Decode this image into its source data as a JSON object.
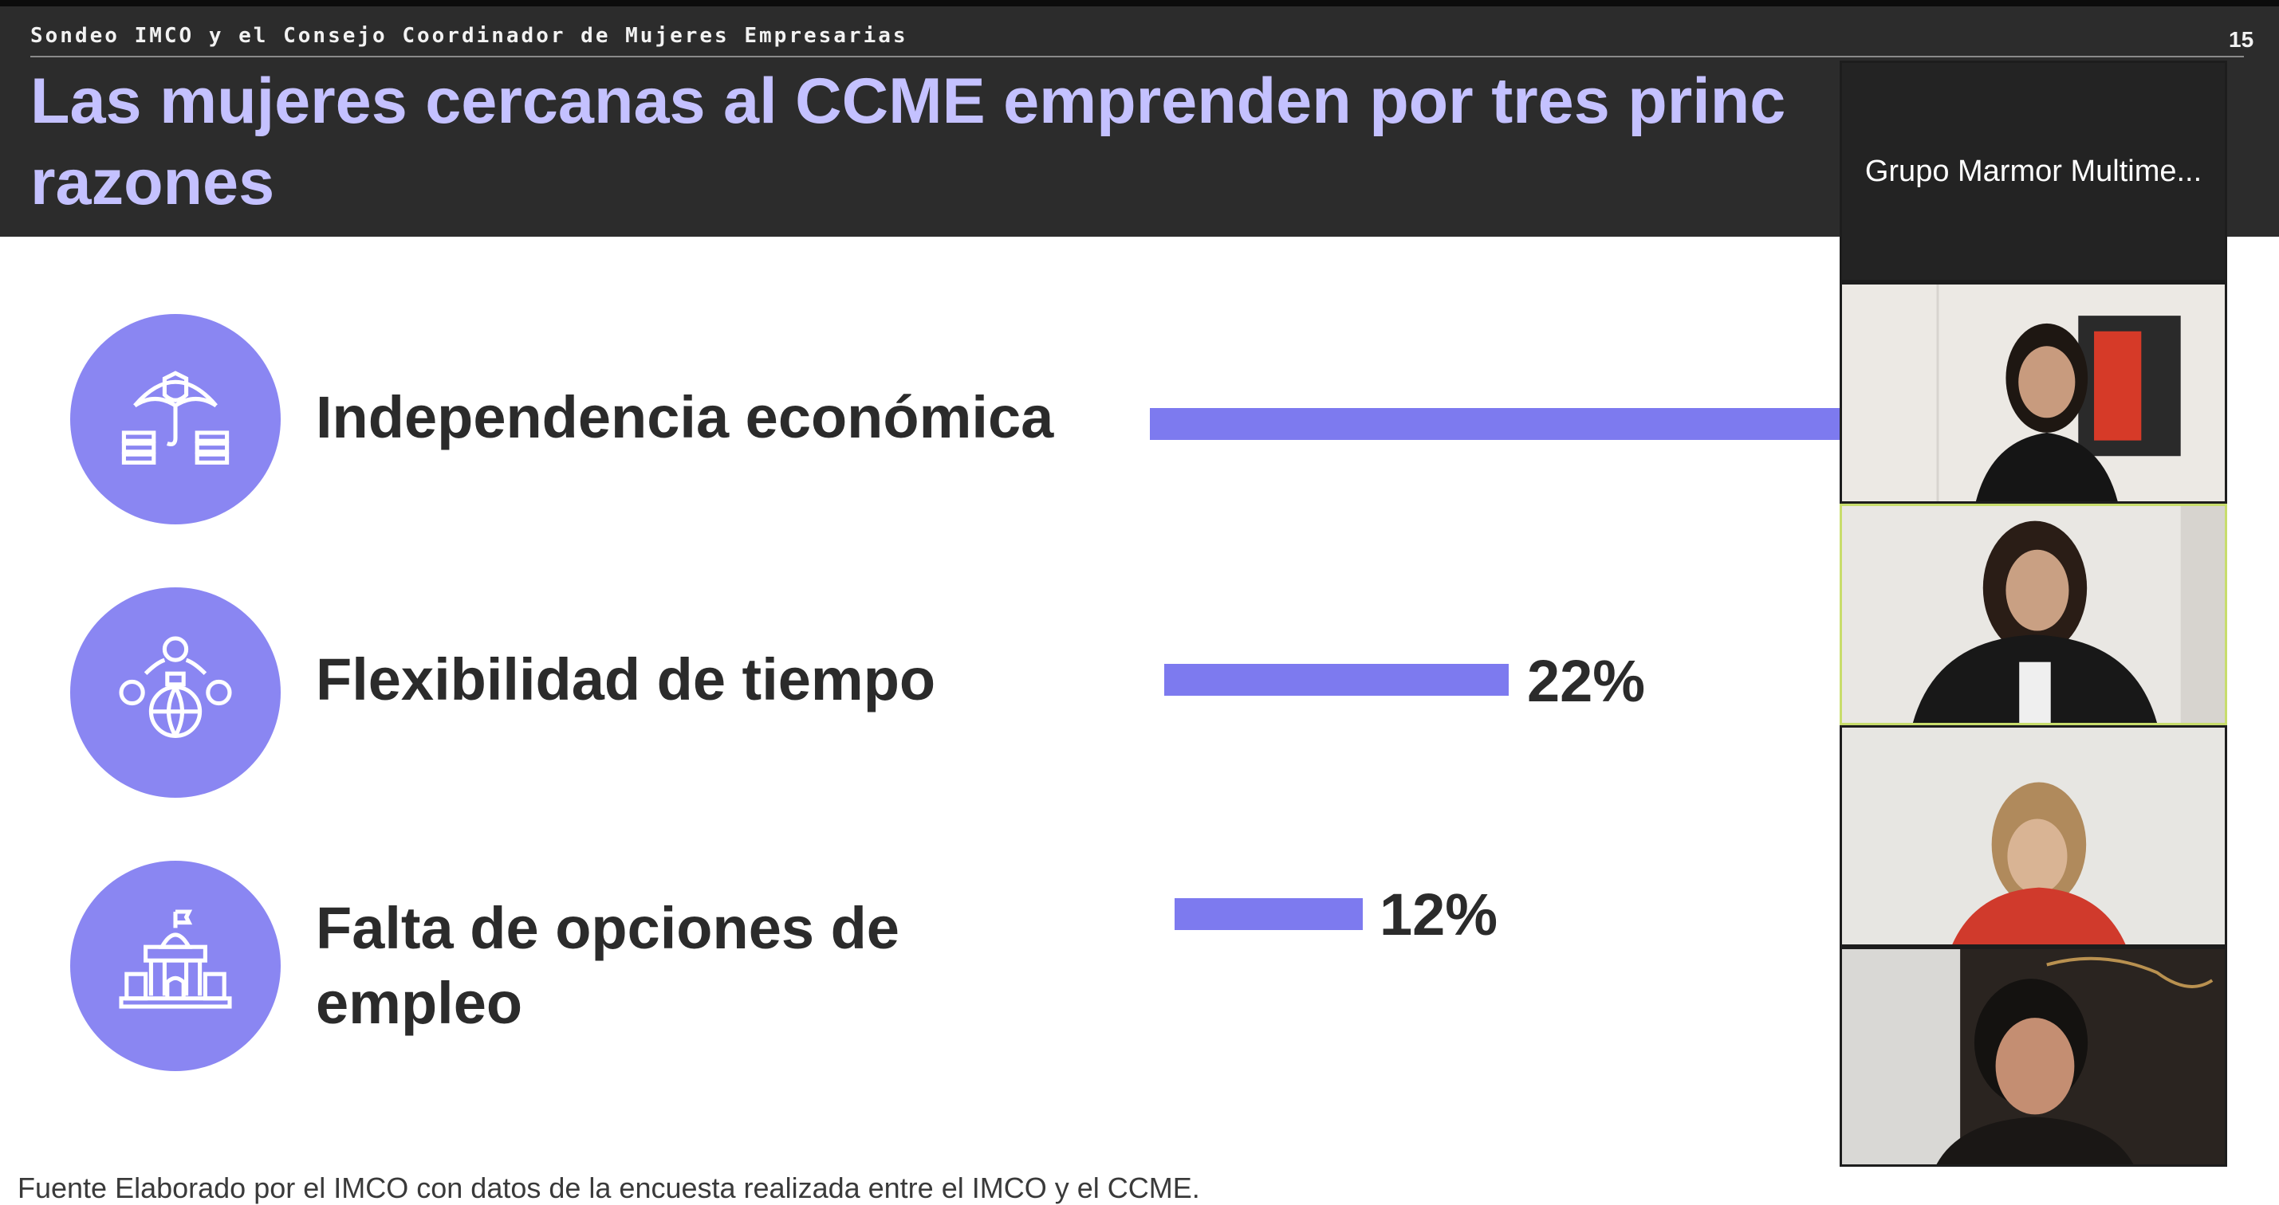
{
  "header": {
    "subtitle": "Sondeo IMCO y el Consejo Coordinador de Mujeres Empresarias",
    "page_number": "15",
    "title_line1": "Las mujeres cercanas al CCME emprenden por tres princ",
    "title_line2": "razones"
  },
  "reasons": [
    {
      "label": "Independencia económica",
      "percent_label": "",
      "icon": "money-shield-icon"
    },
    {
      "label": "Flexibilidad de tiempo",
      "percent_label": "22%",
      "icon": "globe-network-icon"
    },
    {
      "label_line1": "Falta de opciones de",
      "label_line2": "empleo",
      "percent_label": "12%",
      "icon": "government-building-icon"
    }
  ],
  "source_note": "Fuente Elaborado por el IMCO con datos de la encuesta realizada entre el IMCO y el CCME.",
  "video_call": {
    "name_tile": "Grupo Marmor Multime...",
    "participants": [
      "participant-1",
      "participant-2",
      "participant-3",
      "participant-4"
    ],
    "active_speaker_index": 1
  },
  "colors": {
    "accent": "#7d7aef",
    "header_bg": "#2c2c2c",
    "title": "#c4c1ff"
  }
}
